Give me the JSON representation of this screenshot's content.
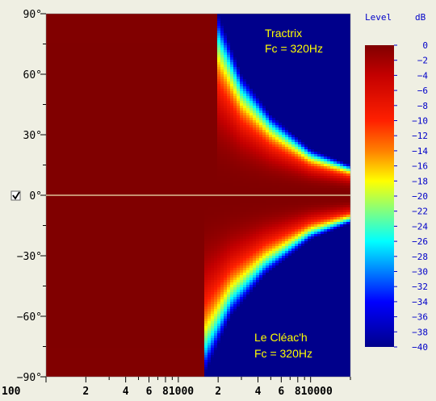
{
  "chart_data": {
    "type": "heatmap",
    "x_axis": {
      "scale": "log",
      "range_hz": [
        100,
        20000
      ],
      "tick_labels": [
        {
          "value": 100,
          "label": "100"
        },
        {
          "value": 200,
          "label": "2"
        },
        {
          "value": 400,
          "label": "4"
        },
        {
          "value": 600,
          "label": "6"
        },
        {
          "value": 800,
          "label": "8"
        },
        {
          "value": 1000,
          "label": "1000"
        },
        {
          "value": 2000,
          "label": "2"
        },
        {
          "value": 4000,
          "label": "4"
        },
        {
          "value": 6000,
          "label": "6"
        },
        {
          "value": 8000,
          "label": "8"
        },
        {
          "value": 10000,
          "label": "10000"
        }
      ],
      "minor_ticks": [
        300,
        500,
        700,
        900,
        3000,
        5000,
        7000,
        9000,
        20000
      ]
    },
    "y_axis": {
      "range_deg": [
        -90,
        90
      ],
      "tick_labels": [
        {
          "value": 90,
          "label": "90°"
        },
        {
          "value": 60,
          "label": "60°"
        },
        {
          "value": 30,
          "label": "30°"
        },
        {
          "value": 0,
          "label": "0°"
        },
        {
          "value": -30,
          "label": "−30°"
        },
        {
          "value": -60,
          "label": "−60°"
        },
        {
          "value": -90,
          "label": "−90°"
        }
      ]
    },
    "colorbar": {
      "title": "Level",
      "unit": "dB",
      "range": [
        -40,
        0
      ],
      "tick_labels": [
        "0",
        "−2",
        "−4",
        "−6",
        "−8",
        "−10",
        "−12",
        "−14",
        "−16",
        "−18",
        "−20",
        "−22",
        "−24",
        "−26",
        "−28",
        "−30",
        "−32",
        "−34",
        "−36",
        "−38",
        "−40"
      ]
    },
    "annotations": {
      "top": {
        "line1": "Tractrix",
        "line2": "Fc = 320Hz"
      },
      "bottom": {
        "line1": "Le Cléac'h",
        "line2": "Fc = 320Hz"
      }
    },
    "regions": [
      {
        "name": "top",
        "angle_range_deg": [
          0,
          90
        ],
        "boundary_40db_deg": [
          [
            2000,
            90
          ],
          [
            3000,
            60
          ],
          [
            5000,
            40
          ],
          [
            10000,
            23
          ],
          [
            20000,
            15
          ]
        ]
      },
      {
        "name": "bottom",
        "angle_range_deg": [
          -90,
          0
        ],
        "boundary_40db_deg": [
          [
            1550,
            -90
          ],
          [
            2500,
            -60
          ],
          [
            4500,
            -40
          ],
          [
            10000,
            -22
          ],
          [
            20000,
            -14
          ]
        ]
      }
    ],
    "zero_line_checkbox": {
      "checked": true
    }
  },
  "colors": {
    "background": "#efefe3",
    "axis_text": "#000000",
    "colorbar_text": "#0000c8",
    "annotation_text": "#ffff00",
    "zero_line": "#f0e6b4",
    "min_level": "#00008b"
  }
}
